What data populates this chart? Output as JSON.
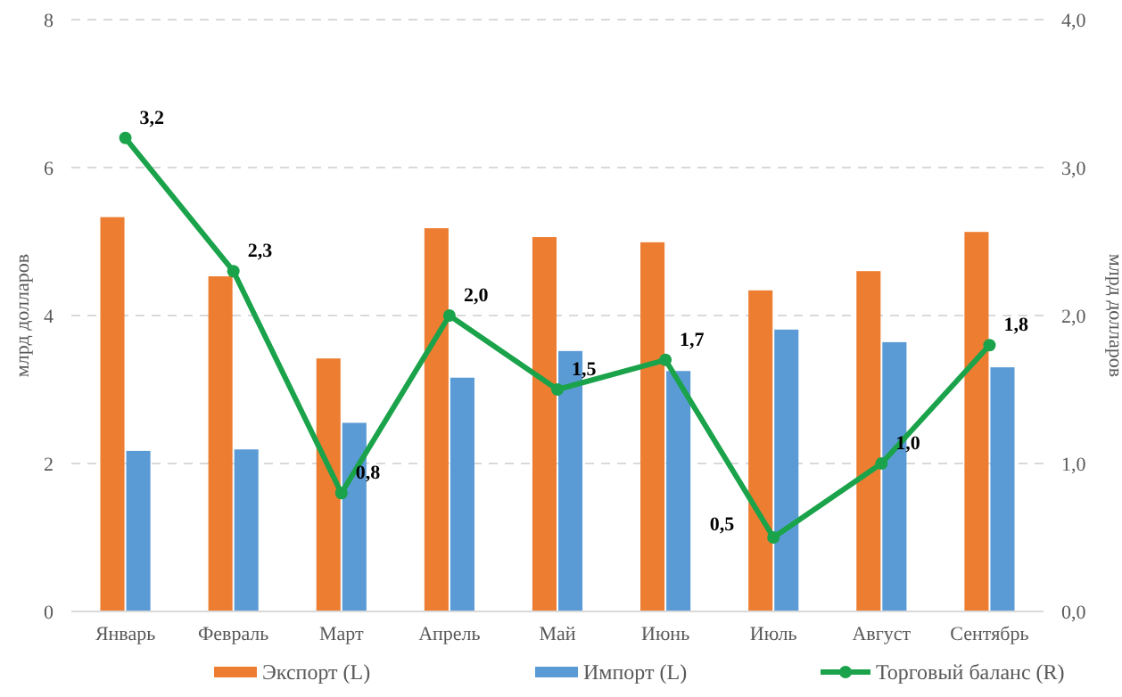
{
  "chart_data": {
    "type": "bar",
    "ylabel": "млрд долларов",
    "y2label": "млрд долларов",
    "categories": [
      "Январь",
      "Февраль",
      "Март",
      "Апрель",
      "Май",
      "Июнь",
      "Июль",
      "Август",
      "Сентябрь"
    ],
    "series": [
      {
        "name": "Экспорт (L)",
        "color": "#ed7d31",
        "values": [
          5.33,
          4.53,
          3.42,
          5.18,
          5.06,
          4.99,
          4.34,
          4.6,
          5.13
        ]
      },
      {
        "name": "Импорт (L)",
        "color": "#5b9bd5",
        "values": [
          2.17,
          2.19,
          2.55,
          3.16,
          3.52,
          3.25,
          3.81,
          3.64,
          3.3
        ]
      },
      {
        "name": "Торговый баланс (R)",
        "type": "line",
        "axis": "y2",
        "color": "#1aa34a",
        "marker": "circle",
        "values": [
          3.2,
          2.3,
          0.8,
          2.0,
          1.5,
          1.7,
          0.5,
          1.0,
          1.8
        ],
        "value_labels": [
          "3,2",
          "2,3",
          "0,8",
          "2,0",
          "1,5",
          "1,7",
          "0,5",
          "1,0",
          "1,8"
        ]
      }
    ],
    "ylim": [
      0,
      8
    ],
    "yticks": [
      0,
      2,
      4,
      6,
      8
    ],
    "y2lim": [
      0,
      4
    ],
    "y2ticks": [
      {
        "value": 0,
        "label": "0,0"
      },
      {
        "value": 1,
        "label": "1,0"
      },
      {
        "value": 2,
        "label": "2,0"
      },
      {
        "value": 3,
        "label": "3,0"
      },
      {
        "value": 4,
        "label": "4,0"
      }
    ],
    "grid": "y",
    "legend": "bottom"
  }
}
